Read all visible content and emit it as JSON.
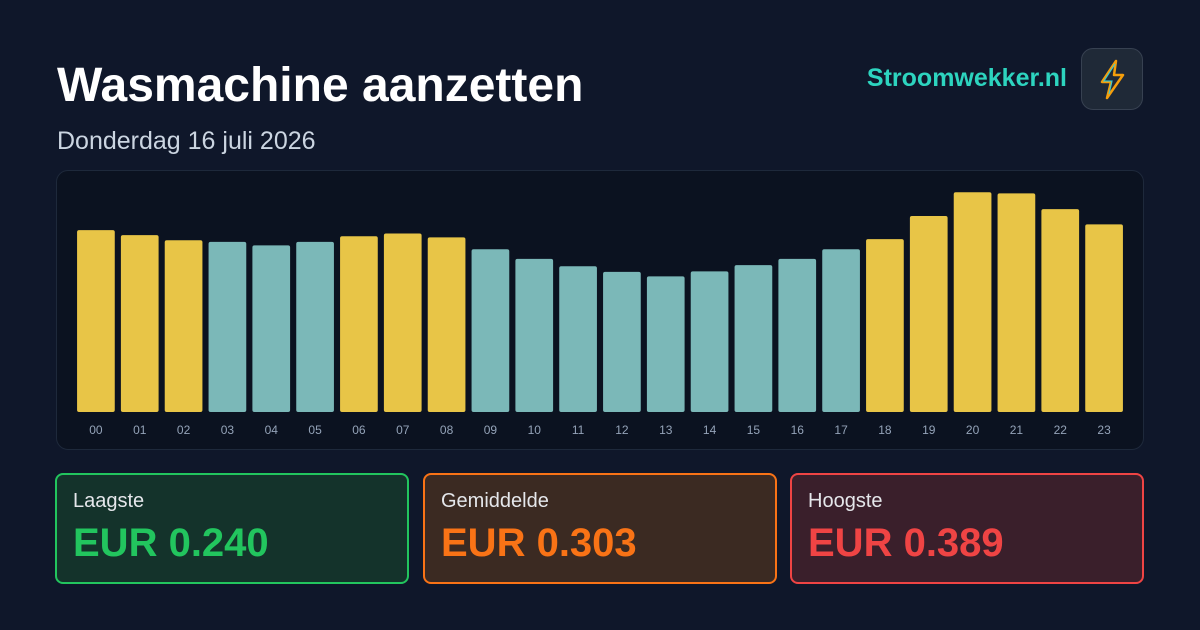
{
  "header": {
    "title": "Wasmachine aanzetten",
    "subtitle": "Donderdag 16 juli 2026",
    "brand": "Stroomwekker.nl"
  },
  "chart_data": {
    "type": "bar",
    "categories": [
      "00",
      "01",
      "02",
      "03",
      "04",
      "05",
      "06",
      "07",
      "08",
      "09",
      "10",
      "11",
      "12",
      "13",
      "14",
      "15",
      "16",
      "17",
      "18",
      "19",
      "20",
      "21",
      "22",
      "23"
    ],
    "values": [
      0.322,
      0.313,
      0.304,
      0.301,
      0.295,
      0.301,
      0.311,
      0.316,
      0.309,
      0.288,
      0.271,
      0.258,
      0.248,
      0.24,
      0.249,
      0.26,
      0.271,
      0.288,
      0.306,
      0.347,
      0.389,
      0.387,
      0.359,
      0.332
    ],
    "colors": [
      "#e8c547",
      "#e8c547",
      "#e8c547",
      "#7bb8b8",
      "#7bb8b8",
      "#7bb8b8",
      "#e8c547",
      "#e8c547",
      "#e8c547",
      "#7bb8b8",
      "#7bb8b8",
      "#7bb8b8",
      "#7bb8b8",
      "#7bb8b8",
      "#7bb8b8",
      "#7bb8b8",
      "#7bb8b8",
      "#7bb8b8",
      "#e8c547",
      "#e8c547",
      "#e8c547",
      "#e8c547",
      "#e8c547",
      "#e8c547"
    ],
    "ylim": [
      0,
      0.4
    ]
  },
  "stats": [
    {
      "label": "Laagste",
      "value": "EUR 0.240"
    },
    {
      "label": "Gemiddelde",
      "value": "EUR 0.303"
    },
    {
      "label": "Hoogste",
      "value": "EUR 0.389"
    }
  ]
}
